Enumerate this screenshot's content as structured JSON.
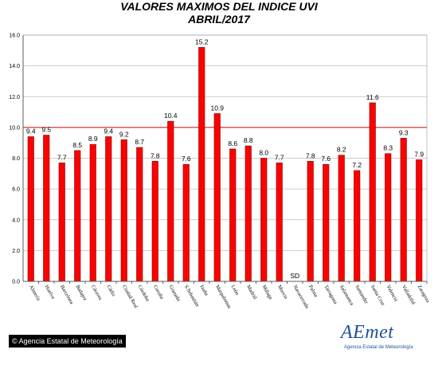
{
  "title_line1": "VALORES MAXIMOS DEL INDICE UVI",
  "title_line2": "ABRIL/2017",
  "credit": "Agencia Estatal de Meteorología",
  "logo": {
    "wordmark": "AEmet",
    "subtitle": "Agencia Estatal de Meteorología",
    "color": "#1e4f9c"
  },
  "chart_data": {
    "type": "bar",
    "title": "VALORES MAXIMOS DEL INDICE UVI ABRIL/2017",
    "xlabel": "",
    "ylabel": "",
    "ylim": [
      0,
      16
    ],
    "yticks": [
      "0.0",
      "2.0",
      "4.0",
      "6.0",
      "8.0",
      "10.0",
      "12.0",
      "14.0",
      "16.0"
    ],
    "reference_line": 10,
    "bar_color": "#ff0000",
    "grid": "horizontal",
    "categories": [
      "Almería",
      "Huelva",
      "Barcelona",
      "Badajoz",
      "Cáceres",
      "Cádiz",
      "Ciudad Real",
      "Córdoba",
      "Coruña",
      "Granada",
      "S.Sebastián",
      "Izaña",
      "Maspalomas",
      "León",
      "Madrid",
      "Málaga",
      "Murcia",
      "Navacerrada",
      "Palma",
      "Tarragona",
      "Salamanca",
      "Santander",
      "Santa Cruz",
      "Valencia",
      "Valladolid",
      "Zaragoza"
    ],
    "values": [
      9.4,
      9.5,
      7.7,
      8.5,
      8.9,
      9.4,
      9.2,
      8.7,
      7.8,
      10.4,
      7.6,
      15.2,
      10.9,
      8.6,
      8.8,
      8.0,
      7.7,
      null,
      7.8,
      7.6,
      8.2,
      7.2,
      11.6,
      8.3,
      9.3,
      7.9
    ],
    "labels": [
      "9.4",
      "9.5",
      "7.7",
      "8.5",
      "8.9",
      "9.4",
      "9.2",
      "8.7",
      "7.8",
      "10.4",
      "7.6",
      "15.2",
      "10.9",
      "8.6",
      "8.8",
      "8.0",
      "7.7",
      "SD",
      "7.8",
      "7.6",
      "8.2",
      "7.2",
      "11.6",
      "8.3",
      "9.3",
      "7.9"
    ]
  }
}
